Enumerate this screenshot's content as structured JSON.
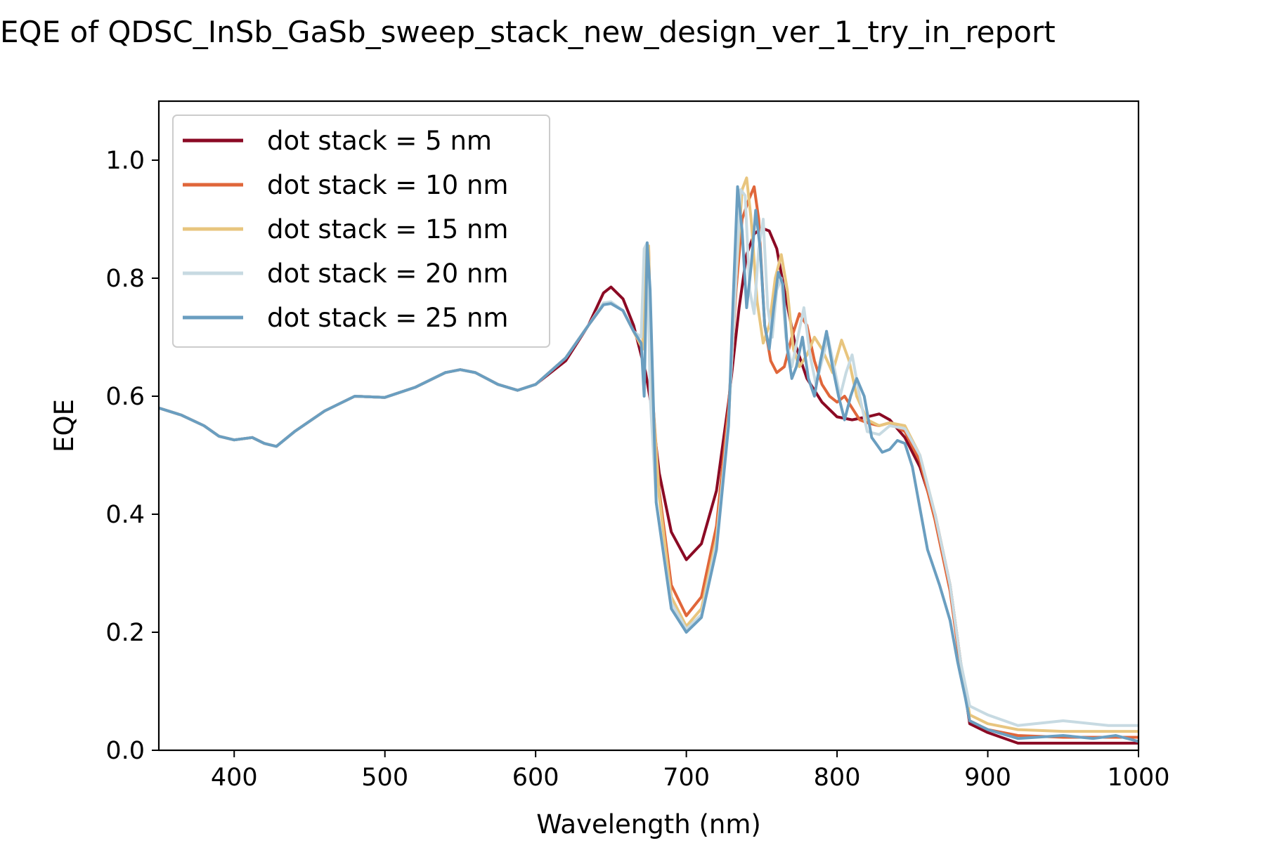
{
  "chart_data": {
    "type": "line",
    "title": "EQE of  QDSC_InSb_GaSb_sweep_stack_new_design_ver_1_try_in_report",
    "xlabel": "Wavelength (nm)",
    "ylabel": "EQE",
    "xlim": [
      350,
      1000
    ],
    "ylim": [
      0,
      1.1
    ],
    "xticks": [
      400,
      500,
      600,
      700,
      800,
      900,
      1000
    ],
    "yticks": [
      0.0,
      0.2,
      0.4,
      0.6,
      0.8,
      1.0
    ],
    "xtick_labels": [
      "400",
      "500",
      "600",
      "700",
      "800",
      "900",
      "1000"
    ],
    "ytick_labels": [
      "0.0",
      "0.2",
      "0.4",
      "0.6",
      "0.8",
      "1.0"
    ],
    "grid": false,
    "legend_position": "top-left",
    "series": [
      {
        "name": "dot stack = 5 nm",
        "color": "#8b0a24",
        "x": [
          350,
          365,
          380,
          390,
          400,
          412,
          420,
          428,
          440,
          460,
          480,
          500,
          520,
          540,
          550,
          560,
          575,
          588,
          600,
          620,
          635,
          645,
          650,
          658,
          665,
          673,
          677,
          682,
          690,
          700,
          710,
          720,
          728,
          735,
          740,
          745,
          750,
          755,
          760,
          765,
          772,
          780,
          790,
          800,
          810,
          820,
          828,
          835,
          845,
          855,
          865,
          875,
          882,
          888,
          900,
          920,
          950,
          980,
          1000
        ],
        "y": [
          0.58,
          0.568,
          0.55,
          0.532,
          0.526,
          0.53,
          0.52,
          0.515,
          0.54,
          0.575,
          0.6,
          0.598,
          0.615,
          0.64,
          0.645,
          0.64,
          0.62,
          0.61,
          0.62,
          0.66,
          0.72,
          0.775,
          0.785,
          0.765,
          0.72,
          0.64,
          0.58,
          0.47,
          0.37,
          0.323,
          0.35,
          0.44,
          0.59,
          0.75,
          0.84,
          0.875,
          0.885,
          0.88,
          0.85,
          0.78,
          0.69,
          0.63,
          0.59,
          0.565,
          0.56,
          0.565,
          0.57,
          0.56,
          0.53,
          0.48,
          0.4,
          0.28,
          0.15,
          0.045,
          0.03,
          0.012,
          0.012,
          0.012,
          0.012
        ]
      },
      {
        "name": "dot stack = 10 nm",
        "color": "#e0663a",
        "x": [
          350,
          365,
          380,
          390,
          400,
          412,
          420,
          428,
          440,
          460,
          480,
          500,
          520,
          540,
          550,
          560,
          575,
          588,
          600,
          620,
          635,
          645,
          650,
          658,
          665,
          671,
          673,
          675,
          677,
          682,
          690,
          700,
          710,
          720,
          728,
          733,
          737,
          741,
          745,
          748,
          752,
          756,
          760,
          765,
          770,
          775,
          780,
          785,
          790,
          795,
          800,
          805,
          810,
          815,
          820,
          828,
          835,
          845,
          855,
          865,
          875,
          882,
          888,
          900,
          920,
          950,
          980,
          1000
        ],
        "y": [
          0.58,
          0.568,
          0.55,
          0.532,
          0.526,
          0.53,
          0.52,
          0.515,
          0.54,
          0.575,
          0.6,
          0.598,
          0.615,
          0.64,
          0.645,
          0.64,
          0.62,
          0.61,
          0.62,
          0.665,
          0.72,
          0.755,
          0.758,
          0.745,
          0.71,
          0.68,
          0.84,
          0.85,
          0.62,
          0.44,
          0.28,
          0.228,
          0.26,
          0.38,
          0.58,
          0.78,
          0.9,
          0.93,
          0.955,
          0.9,
          0.72,
          0.66,
          0.64,
          0.65,
          0.7,
          0.74,
          0.72,
          0.66,
          0.62,
          0.6,
          0.59,
          0.6,
          0.58,
          0.56,
          0.555,
          0.55,
          0.555,
          0.54,
          0.49,
          0.39,
          0.27,
          0.14,
          0.05,
          0.035,
          0.025,
          0.022,
          0.022,
          0.022
        ]
      },
      {
        "name": "dot stack = 15 nm",
        "color": "#e8c57e",
        "x": [
          350,
          365,
          380,
          390,
          400,
          412,
          420,
          428,
          440,
          460,
          480,
          500,
          520,
          540,
          550,
          560,
          575,
          588,
          600,
          620,
          635,
          645,
          650,
          658,
          665,
          671,
          673,
          675,
          677,
          682,
          690,
          700,
          710,
          720,
          728,
          733,
          737,
          740,
          743,
          747,
          751,
          755,
          759,
          763,
          767,
          771,
          775,
          780,
          785,
          790,
          797,
          803,
          808,
          813,
          820,
          828,
          835,
          845,
          855,
          865,
          875,
          882,
          888,
          900,
          920,
          950,
          980,
          1000
        ],
        "y": [
          0.58,
          0.568,
          0.55,
          0.532,
          0.526,
          0.53,
          0.52,
          0.515,
          0.54,
          0.575,
          0.6,
          0.598,
          0.615,
          0.64,
          0.645,
          0.64,
          0.62,
          0.61,
          0.62,
          0.665,
          0.72,
          0.758,
          0.758,
          0.745,
          0.71,
          0.68,
          0.845,
          0.855,
          0.62,
          0.43,
          0.26,
          0.21,
          0.24,
          0.36,
          0.56,
          0.8,
          0.95,
          0.97,
          0.9,
          0.76,
          0.69,
          0.72,
          0.8,
          0.84,
          0.78,
          0.68,
          0.65,
          0.67,
          0.7,
          0.68,
          0.64,
          0.695,
          0.66,
          0.6,
          0.56,
          0.55,
          0.555,
          0.55,
          0.5,
          0.4,
          0.28,
          0.15,
          0.06,
          0.045,
          0.035,
          0.032,
          0.032,
          0.032
        ]
      },
      {
        "name": "dot stack = 20 nm",
        "color": "#c7dae2",
        "x": [
          350,
          365,
          380,
          390,
          400,
          412,
          420,
          428,
          440,
          460,
          480,
          500,
          520,
          540,
          550,
          560,
          575,
          588,
          600,
          620,
          635,
          645,
          650,
          658,
          665,
          670,
          672,
          674,
          676,
          680,
          690,
          700,
          710,
          720,
          728,
          733,
          736,
          739,
          742,
          745,
          748,
          751,
          754,
          757,
          760,
          763,
          766,
          770,
          774,
          778,
          782,
          786,
          790,
          794,
          798,
          802,
          806,
          810,
          815,
          820,
          828,
          835,
          845,
          855,
          865,
          875,
          882,
          888,
          900,
          920,
          950,
          980,
          1000
        ],
        "y": [
          0.58,
          0.568,
          0.55,
          0.532,
          0.526,
          0.53,
          0.52,
          0.515,
          0.54,
          0.575,
          0.6,
          0.598,
          0.615,
          0.64,
          0.645,
          0.64,
          0.62,
          0.61,
          0.62,
          0.665,
          0.72,
          0.758,
          0.76,
          0.745,
          0.71,
          0.7,
          0.85,
          0.86,
          0.6,
          0.42,
          0.25,
          0.205,
          0.23,
          0.35,
          0.56,
          0.8,
          0.95,
          0.94,
          0.78,
          0.74,
          0.85,
          0.9,
          0.75,
          0.7,
          0.78,
          0.8,
          0.7,
          0.65,
          0.7,
          0.75,
          0.67,
          0.62,
          0.66,
          0.7,
          0.65,
          0.6,
          0.64,
          0.67,
          0.6,
          0.54,
          0.535,
          0.55,
          0.545,
          0.5,
          0.4,
          0.28,
          0.15,
          0.075,
          0.06,
          0.042,
          0.05,
          0.042,
          0.042
        ]
      },
      {
        "name": "dot stack = 25 nm",
        "color": "#6a9ec0",
        "x": [
          350,
          365,
          380,
          390,
          400,
          412,
          420,
          428,
          440,
          460,
          480,
          500,
          520,
          540,
          550,
          560,
          575,
          588,
          600,
          620,
          635,
          645,
          650,
          658,
          665,
          670,
          672,
          674,
          676,
          680,
          690,
          700,
          710,
          720,
          728,
          731,
          734,
          737,
          740,
          743,
          746,
          749,
          752,
          755,
          758,
          761,
          764,
          767,
          770,
          773,
          777,
          781,
          785,
          789,
          793,
          797,
          801,
          805,
          809,
          813,
          818,
          823,
          830,
          835,
          840,
          845,
          850,
          855,
          860,
          868,
          875,
          880,
          885,
          888,
          900,
          920,
          950,
          970,
          985,
          1000
        ],
        "y": [
          0.58,
          0.568,
          0.55,
          0.532,
          0.526,
          0.53,
          0.52,
          0.515,
          0.54,
          0.575,
          0.6,
          0.598,
          0.615,
          0.64,
          0.645,
          0.64,
          0.62,
          0.61,
          0.62,
          0.665,
          0.72,
          0.755,
          0.757,
          0.745,
          0.71,
          0.69,
          0.6,
          0.86,
          0.78,
          0.42,
          0.24,
          0.2,
          0.225,
          0.34,
          0.55,
          0.76,
          0.955,
          0.88,
          0.75,
          0.82,
          0.915,
          0.85,
          0.72,
          0.68,
          0.75,
          0.81,
          0.79,
          0.68,
          0.63,
          0.65,
          0.7,
          0.63,
          0.6,
          0.66,
          0.71,
          0.65,
          0.6,
          0.56,
          0.6,
          0.63,
          0.6,
          0.53,
          0.505,
          0.51,
          0.525,
          0.52,
          0.48,
          0.41,
          0.34,
          0.28,
          0.22,
          0.15,
          0.09,
          0.05,
          0.035,
          0.02,
          0.025,
          0.02,
          0.025,
          0.015
        ]
      }
    ]
  }
}
